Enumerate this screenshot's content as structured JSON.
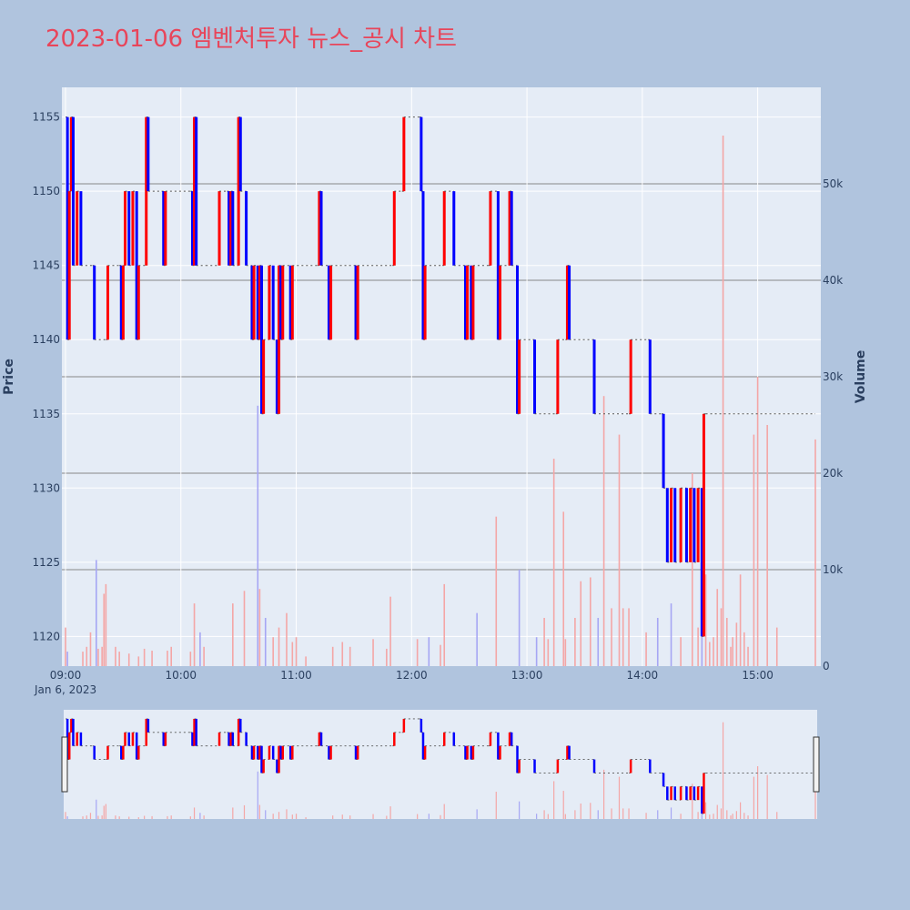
{
  "title": "2023-01-06 엠벤처투자 뉴스_공시 차트",
  "colors": {
    "title": "#e8455a",
    "background": "#b0c4de",
    "plot_background": "#e5ecf6",
    "up": "#ff0000",
    "down": "#0000ff",
    "volume_up": "#f4a6a6",
    "volume_down": "#a6a6f4",
    "reference_line": "#888888"
  },
  "chart_data": {
    "type": "line",
    "subtype": "step price with volume bars and range slider",
    "xlabel": "",
    "x_tick_labels": [
      "09:00",
      "10:00",
      "11:00",
      "12:00",
      "13:00",
      "14:00",
      "15:00"
    ],
    "x_date_label": "Jan 6, 2023",
    "xlim": [
      "09:00",
      "15:30"
    ],
    "y_left": {
      "label": "Price",
      "ticks": [
        1120,
        1125,
        1130,
        1135,
        1140,
        1145,
        1150,
        1155
      ],
      "range": [
        1118,
        1157
      ]
    },
    "y_right": {
      "label": "Volume",
      "ticks": [
        0,
        10000,
        20000,
        30000,
        40000,
        50000
      ],
      "tick_labels": [
        "0",
        "10k",
        "20k",
        "30k",
        "40k",
        "50k"
      ],
      "range": [
        0,
        60000
      ]
    },
    "reference_lines_volume": [
      10000,
      20000,
      30000,
      40000,
      50000
    ],
    "price_series": [
      [
        "09:00",
        1155
      ],
      [
        "09:01",
        1140
      ],
      [
        "09:02",
        1150
      ],
      [
        "09:03",
        1155
      ],
      [
        "09:04",
        1145
      ],
      [
        "09:06",
        1150
      ],
      [
        "09:08",
        1145
      ],
      [
        "09:14",
        1145
      ],
      [
        "09:15",
        1140
      ],
      [
        "09:21",
        1140
      ],
      [
        "09:22",
        1145
      ],
      [
        "09:28",
        1145
      ],
      [
        "09:29",
        1140
      ],
      [
        "09:30",
        1145
      ],
      [
        "09:31",
        1150
      ],
      [
        "09:33",
        1145
      ],
      [
        "09:35",
        1150
      ],
      [
        "09:37",
        1140
      ],
      [
        "09:38",
        1145
      ],
      [
        "09:42",
        1155
      ],
      [
        "09:43",
        1150
      ],
      [
        "09:50",
        1150
      ],
      [
        "09:51",
        1145
      ],
      [
        "09:52",
        1150
      ],
      [
        "10:05",
        1150
      ],
      [
        "10:06",
        1145
      ],
      [
        "10:07",
        1155
      ],
      [
        "10:08",
        1145
      ],
      [
        "10:13",
        1145
      ],
      [
        "10:20",
        1150
      ],
      [
        "10:24",
        1150
      ],
      [
        "10:25",
        1145
      ],
      [
        "10:26",
        1150
      ],
      [
        "10:27",
        1145
      ],
      [
        "10:30",
        1155
      ],
      [
        "10:31",
        1150
      ],
      [
        "10:34",
        1145
      ],
      [
        "10:37",
        1140
      ],
      [
        "10:38",
        1145
      ],
      [
        "10:40",
        1140
      ],
      [
        "10:41",
        1145
      ],
      [
        "10:42",
        1135
      ],
      [
        "10:43",
        1140
      ],
      [
        "10:46",
        1145
      ],
      [
        "10:48",
        1140
      ],
      [
        "10:50",
        1135
      ],
      [
        "10:51",
        1145
      ],
      [
        "10:52",
        1140
      ],
      [
        "10:53",
        1145
      ],
      [
        "10:57",
        1140
      ],
      [
        "10:58",
        1145
      ],
      [
        "11:11",
        1145
      ],
      [
        "11:12",
        1150
      ],
      [
        "11:13",
        1145
      ],
      [
        "11:17",
        1140
      ],
      [
        "11:18",
        1145
      ],
      [
        "11:30",
        1145
      ],
      [
        "11:31",
        1140
      ],
      [
        "11:32",
        1145
      ],
      [
        "11:50",
        1145
      ],
      [
        "11:51",
        1150
      ],
      [
        "11:55",
        1150
      ],
      [
        "11:56",
        1155
      ],
      [
        "12:04",
        1155
      ],
      [
        "12:05",
        1150
      ],
      [
        "12:06",
        1140
      ],
      [
        "12:07",
        1145
      ],
      [
        "12:16",
        1145
      ],
      [
        "12:17",
        1150
      ],
      [
        "12:22",
        1145
      ],
      [
        "12:28",
        1140
      ],
      [
        "12:29",
        1145
      ],
      [
        "12:31",
        1140
      ],
      [
        "12:32",
        1145
      ],
      [
        "12:40",
        1145
      ],
      [
        "12:41",
        1150
      ],
      [
        "12:45",
        1140
      ],
      [
        "12:46",
        1145
      ],
      [
        "12:51",
        1150
      ],
      [
        "12:52",
        1145
      ],
      [
        "12:55",
        1135
      ],
      [
        "12:56",
        1140
      ],
      [
        "13:03",
        1140
      ],
      [
        "13:04",
        1135
      ],
      [
        "13:15",
        1135
      ],
      [
        "13:16",
        1140
      ],
      [
        "13:20",
        1140
      ],
      [
        "13:21",
        1145
      ],
      [
        "13:22",
        1140
      ],
      [
        "13:34",
        1140
      ],
      [
        "13:35",
        1135
      ],
      [
        "13:53",
        1135
      ],
      [
        "13:54",
        1140
      ],
      [
        "14:03",
        1140
      ],
      [
        "14:04",
        1135
      ],
      [
        "14:10",
        1135
      ],
      [
        "14:11",
        1130
      ],
      [
        "14:13",
        1125
      ],
      [
        "14:15",
        1130
      ],
      [
        "14:17",
        1125
      ],
      [
        "14:20",
        1130
      ],
      [
        "14:23",
        1125
      ],
      [
        "14:25",
        1130
      ],
      [
        "14:27",
        1125
      ],
      [
        "14:29",
        1130
      ],
      [
        "14:31",
        1120
      ],
      [
        "14:32",
        1135
      ],
      [
        "14:33",
        1135
      ],
      [
        "15:30",
        1135
      ]
    ],
    "volume_series": [
      [
        "09:00",
        4000
      ],
      [
        "09:01",
        1500
      ],
      [
        "09:09",
        1500
      ],
      [
        "09:11",
        2000
      ],
      [
        "09:13",
        3500
      ],
      [
        "09:16",
        11000
      ],
      [
        "09:17",
        1800
      ],
      [
        "09:19",
        2000
      ],
      [
        "09:20",
        7500
      ],
      [
        "09:21",
        8500
      ],
      [
        "09:26",
        2000
      ],
      [
        "09:28",
        1500
      ],
      [
        "09:33",
        1300
      ],
      [
        "09:38",
        1000
      ],
      [
        "09:41",
        1800
      ],
      [
        "09:45",
        1600
      ],
      [
        "09:53",
        1600
      ],
      [
        "09:55",
        2000
      ],
      [
        "10:05",
        1500
      ],
      [
        "10:07",
        6500
      ],
      [
        "10:10",
        3500
      ],
      [
        "10:12",
        2000
      ],
      [
        "10:27",
        6500
      ],
      [
        "10:33",
        7800
      ],
      [
        "10:40",
        27000
      ],
      [
        "10:41",
        8000
      ],
      [
        "10:44",
        5000
      ],
      [
        "10:48",
        3000
      ],
      [
        "10:51",
        4000
      ],
      [
        "10:55",
        5500
      ],
      [
        "10:58",
        2500
      ],
      [
        "11:00",
        3000
      ],
      [
        "11:05",
        1000
      ],
      [
        "11:19",
        2000
      ],
      [
        "11:24",
        2500
      ],
      [
        "11:28",
        2000
      ],
      [
        "11:40",
        2800
      ],
      [
        "11:47",
        1800
      ],
      [
        "11:49",
        7200
      ],
      [
        "12:03",
        2800
      ],
      [
        "12:09",
        3000
      ],
      [
        "12:15",
        2200
      ],
      [
        "12:17",
        8500
      ],
      [
        "12:34",
        5500
      ],
      [
        "12:44",
        15500
      ],
      [
        "12:56",
        10000
      ],
      [
        "13:05",
        3000
      ],
      [
        "13:09",
        5000
      ],
      [
        "13:11",
        2800
      ],
      [
        "13:14",
        21500
      ],
      [
        "13:19",
        16000
      ],
      [
        "13:20",
        2800
      ],
      [
        "13:25",
        5000
      ],
      [
        "13:28",
        8800
      ],
      [
        "13:33",
        9200
      ],
      [
        "13:37",
        5000
      ],
      [
        "13:40",
        28000
      ],
      [
        "13:44",
        6000
      ],
      [
        "13:48",
        24000
      ],
      [
        "13:50",
        6000
      ],
      [
        "13:53",
        6000
      ],
      [
        "14:02",
        3500
      ],
      [
        "14:08",
        5000
      ],
      [
        "14:15",
        6500
      ],
      [
        "14:20",
        3000
      ],
      [
        "14:26",
        20000
      ],
      [
        "14:29",
        4000
      ],
      [
        "14:31",
        9000
      ],
      [
        "14:33",
        9500
      ],
      [
        "14:35",
        2500
      ],
      [
        "14:37",
        3000
      ],
      [
        "14:39",
        8000
      ],
      [
        "14:41",
        6000
      ],
      [
        "14:42",
        55000
      ],
      [
        "14:44",
        5000
      ],
      [
        "14:46",
        2000
      ],
      [
        "14:47",
        3000
      ],
      [
        "14:49",
        4500
      ],
      [
        "14:51",
        9500
      ],
      [
        "14:53",
        3500
      ],
      [
        "14:55",
        2000
      ],
      [
        "14:58",
        24000
      ],
      [
        "15:00",
        30000
      ],
      [
        "15:05",
        25000
      ],
      [
        "15:10",
        4000
      ],
      [
        "15:30",
        23500
      ]
    ]
  }
}
